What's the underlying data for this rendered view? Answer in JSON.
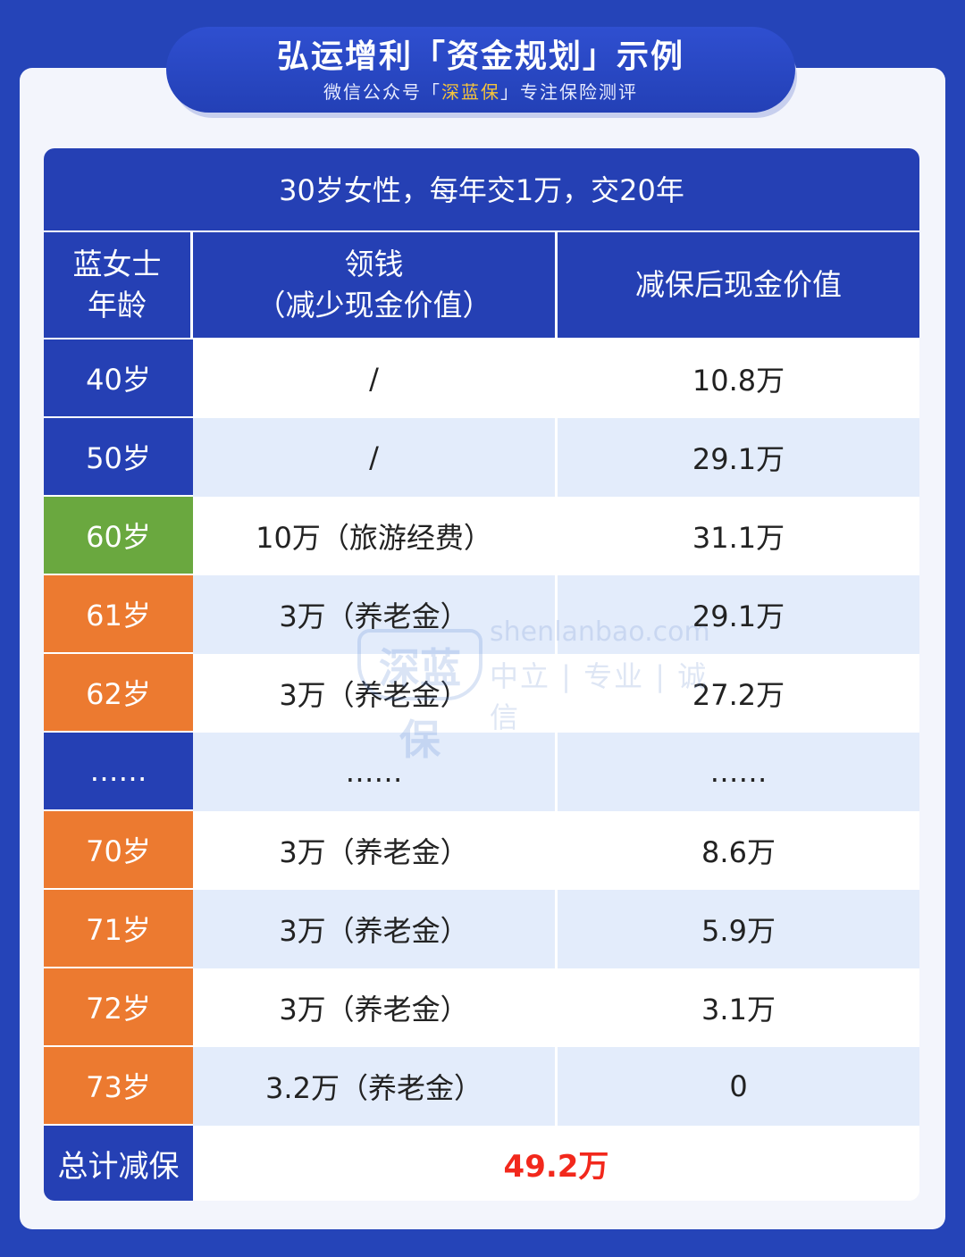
{
  "banner": {
    "title": "弘运增利「资金规划」示例",
    "subtitle_pre": "微信公众号「",
    "subtitle_accent": "深蓝保",
    "subtitle_post": "」专注保险测评"
  },
  "table": {
    "caption": "30岁女性，每年交1万，交20年",
    "headers": {
      "age_line1": "蓝女士",
      "age_line2": "年龄",
      "withdraw_line1": "领钱",
      "withdraw_line2": "（减少现金价值）",
      "cash_value": "减保后现金价值"
    },
    "rows": [
      {
        "age": "40岁",
        "withdraw": "/",
        "cash_value": "10.8万",
        "age_color": "#2540b4"
      },
      {
        "age": "50岁",
        "withdraw": "/",
        "cash_value": "29.1万",
        "age_color": "#2540b4"
      },
      {
        "age": "60岁",
        "withdraw": "10万（旅游经费）",
        "cash_value": "31.1万",
        "age_color": "#6aa83f"
      },
      {
        "age": "61岁",
        "withdraw": "3万（养老金）",
        "cash_value": "29.1万",
        "age_color": "#ec7a30"
      },
      {
        "age": "62岁",
        "withdraw": "3万（养老金）",
        "cash_value": "27.2万",
        "age_color": "#ec7a30"
      },
      {
        "age": "……",
        "withdraw": "……",
        "cash_value": "……",
        "age_color": "#2540b4"
      },
      {
        "age": "70岁",
        "withdraw": "3万（养老金）",
        "cash_value": "8.6万",
        "age_color": "#ec7a30"
      },
      {
        "age": "71岁",
        "withdraw": "3万（养老金）",
        "cash_value": "5.9万",
        "age_color": "#ec7a30"
      },
      {
        "age": "72岁",
        "withdraw": "3万（养老金）",
        "cash_value": "3.1万",
        "age_color": "#ec7a30"
      },
      {
        "age": "73岁",
        "withdraw": "3.2万（养老金）",
        "cash_value": "0",
        "age_color": "#ec7a30"
      }
    ],
    "total": {
      "label": "总计减保",
      "value": "49.2万",
      "value_color": "#f2281c"
    }
  },
  "watermark": {
    "logo": "深蓝保",
    "url": "shenlanbao.com",
    "tagline": "中立 | 专业 | 诚信"
  }
}
